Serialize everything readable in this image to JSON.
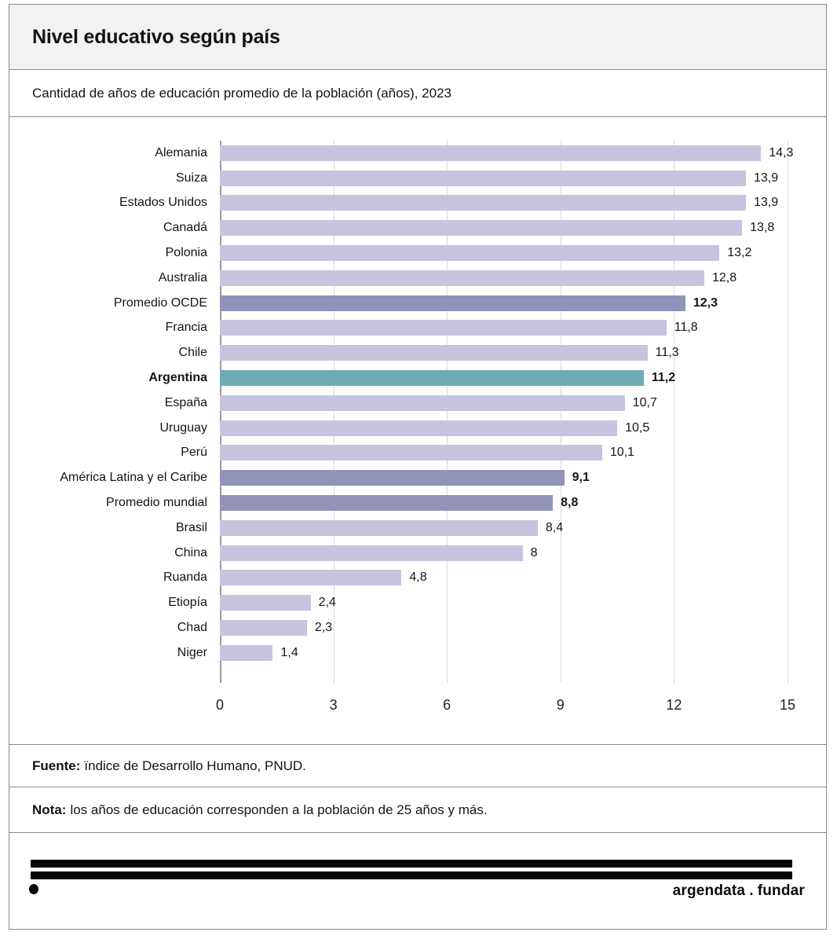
{
  "header": {
    "title": "Nivel educativo según país"
  },
  "subtitle": "Cantidad de años de educación promedio de la población (años), 2023",
  "chart_data": {
    "type": "bar",
    "orientation": "horizontal",
    "title": "Nivel educativo según país",
    "subtitle": "Cantidad de años de educación promedio de la población (años), 2023",
    "xlabel": "",
    "ylabel": "",
    "xlim": [
      0,
      15
    ],
    "xticks": [
      0,
      3,
      6,
      9,
      12,
      15
    ],
    "grid": "vertical",
    "unit": "años",
    "rows": [
      {
        "label": "Alemania",
        "value": 14.3,
        "display": "14,3",
        "type": "default"
      },
      {
        "label": "Suiza",
        "value": 13.9,
        "display": "13,9",
        "type": "default"
      },
      {
        "label": "Estados Unidos",
        "value": 13.9,
        "display": "13,9",
        "type": "default"
      },
      {
        "label": "Canadá",
        "value": 13.8,
        "display": "13,8",
        "type": "default"
      },
      {
        "label": "Polonia",
        "value": 13.2,
        "display": "13,2",
        "type": "default"
      },
      {
        "label": "Australia",
        "value": 12.8,
        "display": "12,8",
        "type": "default"
      },
      {
        "label": "Promedio OCDE",
        "value": 12.3,
        "display": "12,3",
        "type": "aggregate"
      },
      {
        "label": "Francia",
        "value": 11.8,
        "display": "11,8",
        "type": "default"
      },
      {
        "label": "Chile",
        "value": 11.3,
        "display": "11,3",
        "type": "default"
      },
      {
        "label": "Argentina",
        "value": 11.2,
        "display": "11,2",
        "type": "highlight"
      },
      {
        "label": "España",
        "value": 10.7,
        "display": "10,7",
        "type": "default"
      },
      {
        "label": "Uruguay",
        "value": 10.5,
        "display": "10,5",
        "type": "default"
      },
      {
        "label": "Perú",
        "value": 10.1,
        "display": "10,1",
        "type": "default"
      },
      {
        "label": "América Latina y el Caribe",
        "value": 9.1,
        "display": "9,1",
        "type": "aggregate"
      },
      {
        "label": "Promedio mundial",
        "value": 8.8,
        "display": "8,8",
        "type": "aggregate"
      },
      {
        "label": "Brasil",
        "value": 8.4,
        "display": "8,4",
        "type": "default"
      },
      {
        "label": "China",
        "value": 8,
        "display": "8",
        "type": "default"
      },
      {
        "label": "Ruanda",
        "value": 4.8,
        "display": "4,8",
        "type": "default"
      },
      {
        "label": "Etiopía",
        "value": 2.4,
        "display": "2,4",
        "type": "default"
      },
      {
        "label": "Chad",
        "value": 2.3,
        "display": "2,3",
        "type": "default"
      },
      {
        "label": "Niger",
        "value": 1.4,
        "display": "1,4",
        "type": "default"
      }
    ],
    "colors": {
      "default": "#c6c4de",
      "aggregate": "#9392b8",
      "highlight": "#6fabb7"
    }
  },
  "fuente": {
    "label": "Fuente:",
    "text": "ïndice de Desarrollo Humano, PNUD."
  },
  "nota": {
    "label": "Nota:",
    "text": "los años de educación corresponden a la población de 25 años y más."
  },
  "footer": {
    "brand_left": "argendata",
    "brand_sep": ".",
    "brand_right": "fundar"
  }
}
